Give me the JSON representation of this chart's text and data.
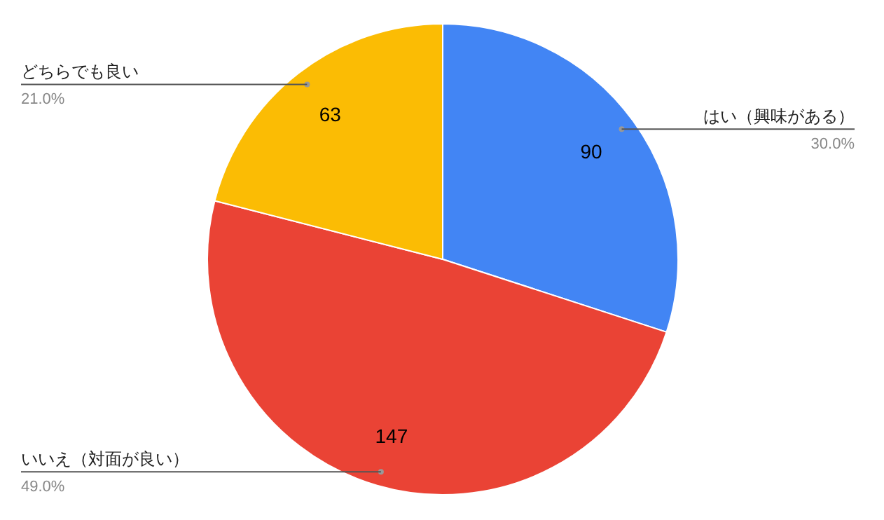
{
  "chart_data": {
    "type": "pie",
    "categories": [
      "はい（興味がある）",
      "いいえ（対面が良い）",
      "どちらでも良い"
    ],
    "values": [
      90,
      147,
      63
    ],
    "colors": [
      "#4285f4",
      "#ea4335",
      "#fbbc04"
    ],
    "data_labels": true,
    "legend": false,
    "annotations": [
      {
        "text": "30.0%",
        "x": "はい（興味がある）"
      },
      {
        "text": "49.0%",
        "x": "いいえ（対面が良い）"
      },
      {
        "text": "21.0%",
        "x": "どちらでも良い"
      }
    ]
  }
}
